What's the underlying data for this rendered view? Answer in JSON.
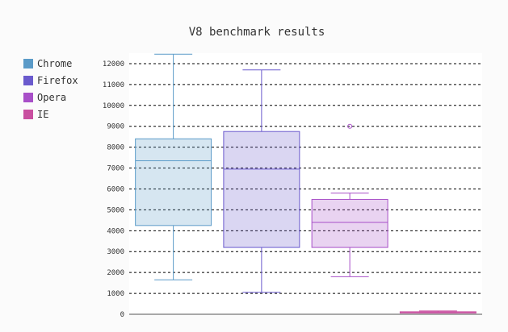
{
  "chart_data": {
    "type": "box",
    "title": "V8 benchmark results",
    "xlabel": "",
    "ylabel": "",
    "ylim": [
      0,
      12500
    ],
    "yticks": [
      0,
      1000,
      2000,
      3000,
      4000,
      5000,
      6000,
      7000,
      8000,
      9000,
      10000,
      11000,
      12000
    ],
    "grid": "horizontal dashed",
    "legend_position": "left",
    "series": [
      {
        "name": "Chrome",
        "color": "#5b9bc8",
        "min": 1650,
        "q1": 4250,
        "median": 7350,
        "q3": 8400,
        "max": 12450,
        "outliers": []
      },
      {
        "name": "Firefox",
        "color": "#6a5acd",
        "min": 1050,
        "q1": 3200,
        "median": 6950,
        "q3": 8750,
        "max": 11700,
        "outliers": []
      },
      {
        "name": "Opera",
        "color": "#a84fc8",
        "min": 1800,
        "q1": 3200,
        "median": 4400,
        "q3": 5500,
        "max": 5800,
        "outliers": [
          9000
        ]
      },
      {
        "name": "IE",
        "color": "#c94fa0",
        "min": 60,
        "q1": 60,
        "median": 100,
        "q3": 120,
        "max": 160,
        "outliers": []
      }
    ]
  }
}
